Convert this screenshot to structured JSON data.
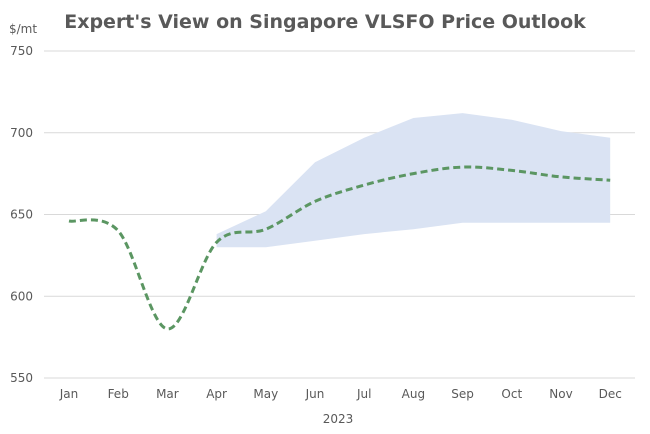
{
  "chart_data": {
    "type": "line",
    "title": "Expert's View on Singapore VLSFO Price Outlook",
    "ylabel": "$/mt",
    "xlabel": "2023",
    "categories": [
      "Jan",
      "Feb",
      "Mar",
      "Apr",
      "May",
      "Jun",
      "Jul",
      "Aug",
      "Sep",
      "Oct",
      "Nov",
      "Dec"
    ],
    "ylim": [
      550,
      750
    ],
    "yticks": [
      550,
      600,
      650,
      700,
      750
    ],
    "grid": true,
    "series": [
      {
        "style": "dashed",
        "color": "#5B9662",
        "values": [
          646,
          640,
          580,
          633,
          641,
          658,
          668,
          675,
          679,
          677,
          673,
          671
        ]
      }
    ],
    "band": {
      "color": "#DAE3F3",
      "start_index": 3,
      "upper": [
        638,
        652,
        682,
        697,
        709,
        712,
        708,
        701,
        697
      ],
      "lower": [
        630,
        630,
        634,
        638,
        641,
        645,
        645,
        645,
        645
      ]
    }
  }
}
